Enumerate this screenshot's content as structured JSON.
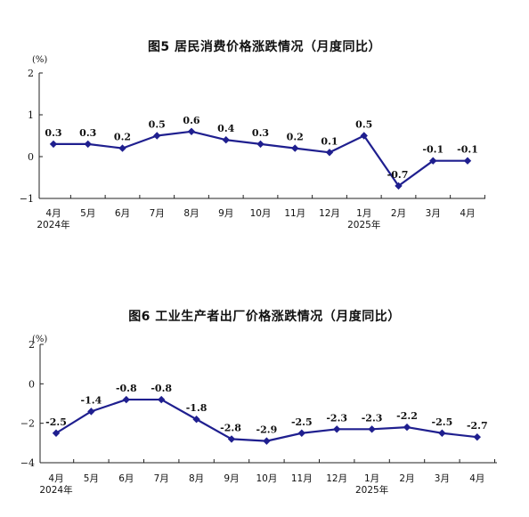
{
  "chart_data": [
    {
      "type": "line",
      "title": "图5   居民消费价格涨跌情况（月度同比）",
      "unit": "(%)",
      "categories": [
        "4月",
        "5月",
        "6月",
        "7月",
        "8月",
        "9月",
        "10月",
        "11月",
        "12月",
        "1月",
        "2月",
        "3月",
        "4月"
      ],
      "year_labels": [
        {
          "index": 0,
          "text": "2024年"
        },
        {
          "index": 9,
          "text": "2025年"
        }
      ],
      "values": [
        0.3,
        0.3,
        0.2,
        0.5,
        0.6,
        0.4,
        0.3,
        0.2,
        0.1,
        0.5,
        -0.7,
        -0.1,
        -0.1
      ],
      "data_labels": [
        "0.3",
        "0.3",
        "0.2",
        "0.5",
        "0.6",
        "0.4",
        "0.3",
        "0.2",
        "0.1",
        "0.5",
        "-0.7",
        "-0.1",
        "-0.1"
      ],
      "ylim": [
        -1,
        2
      ],
      "yticks": [
        -1,
        0,
        1,
        2
      ],
      "ytick_labels": [
        "−1",
        "0",
        "1",
        "2"
      ],
      "color": "#1f1f8f",
      "grid": false
    },
    {
      "type": "line",
      "title": "图6   工业生产者出厂价格涨跌情况（月度同比）",
      "unit": "(%)",
      "categories": [
        "4月",
        "5月",
        "6月",
        "7月",
        "8月",
        "9月",
        "10月",
        "11月",
        "12月",
        "1月",
        "2月",
        "3月",
        "4月"
      ],
      "year_labels": [
        {
          "index": 0,
          "text": "2024年"
        },
        {
          "index": 9,
          "text": "2025年"
        }
      ],
      "values": [
        -2.5,
        -1.4,
        -0.8,
        -0.8,
        -1.8,
        -2.8,
        -2.9,
        -2.5,
        -2.3,
        -2.3,
        -2.2,
        -2.5,
        -2.7
      ],
      "data_labels": [
        "-2.5",
        "-1.4",
        "-0.8",
        "-0.8",
        "-1.8",
        "-2.8",
        "-2.9",
        "-2.5",
        "-2.3",
        "-2.3",
        "-2.2",
        "-2.5",
        "-2.7"
      ],
      "ylim": [
        -4,
        2
      ],
      "yticks": [
        -4,
        -2,
        0,
        2
      ],
      "ytick_labels": [
        "−4",
        "−2",
        "0",
        "2"
      ],
      "color": "#1f1f8f",
      "grid": false
    }
  ]
}
